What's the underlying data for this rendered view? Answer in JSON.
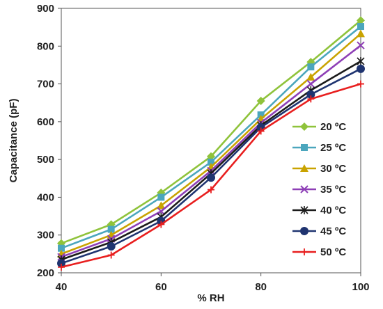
{
  "chart_data": {
    "type": "line",
    "title": "",
    "xlabel": "% RH",
    "ylabel": "Capacitance (pF)",
    "x": [
      40,
      50,
      60,
      70,
      80,
      90,
      100
    ],
    "xlim": [
      40,
      100
    ],
    "ylim": [
      200,
      900
    ],
    "xticks": [
      40,
      60,
      80,
      100
    ],
    "yticks": [
      200,
      300,
      400,
      500,
      600,
      700,
      800,
      900
    ],
    "grid": false,
    "legend_position": "right",
    "series": [
      {
        "name": "20 ºC",
        "color": "#8fc33b",
        "marker": "diamond",
        "values": [
          278,
          328,
          412,
          508,
          655,
          758,
          868
        ]
      },
      {
        "name": "25 ºC",
        "color": "#4ba6bd",
        "marker": "square",
        "values": [
          265,
          315,
          400,
          493,
          618,
          745,
          852
        ]
      },
      {
        "name": "30 ºC",
        "color": "#c9a300",
        "marker": "triangle",
        "values": [
          250,
          300,
          378,
          480,
          607,
          718,
          833
        ]
      },
      {
        "name": "35 ºC",
        "color": "#8e3fb6",
        "marker": "x",
        "values": [
          242,
          290,
          363,
          470,
          597,
          700,
          802
        ]
      },
      {
        "name": "40 ºC",
        "color": "#1b1b1b",
        "marker": "asterisk",
        "values": [
          235,
          281,
          348,
          463,
          590,
          683,
          760
        ]
      },
      {
        "name": "45 ºC",
        "color": "#1f3470",
        "marker": "circle",
        "values": [
          225,
          270,
          337,
          452,
          585,
          672,
          740
        ]
      },
      {
        "name": "50 ºC",
        "color": "#e81e1e",
        "marker": "plus",
        "values": [
          215,
          247,
          328,
          420,
          575,
          660,
          700
        ]
      }
    ]
  }
}
